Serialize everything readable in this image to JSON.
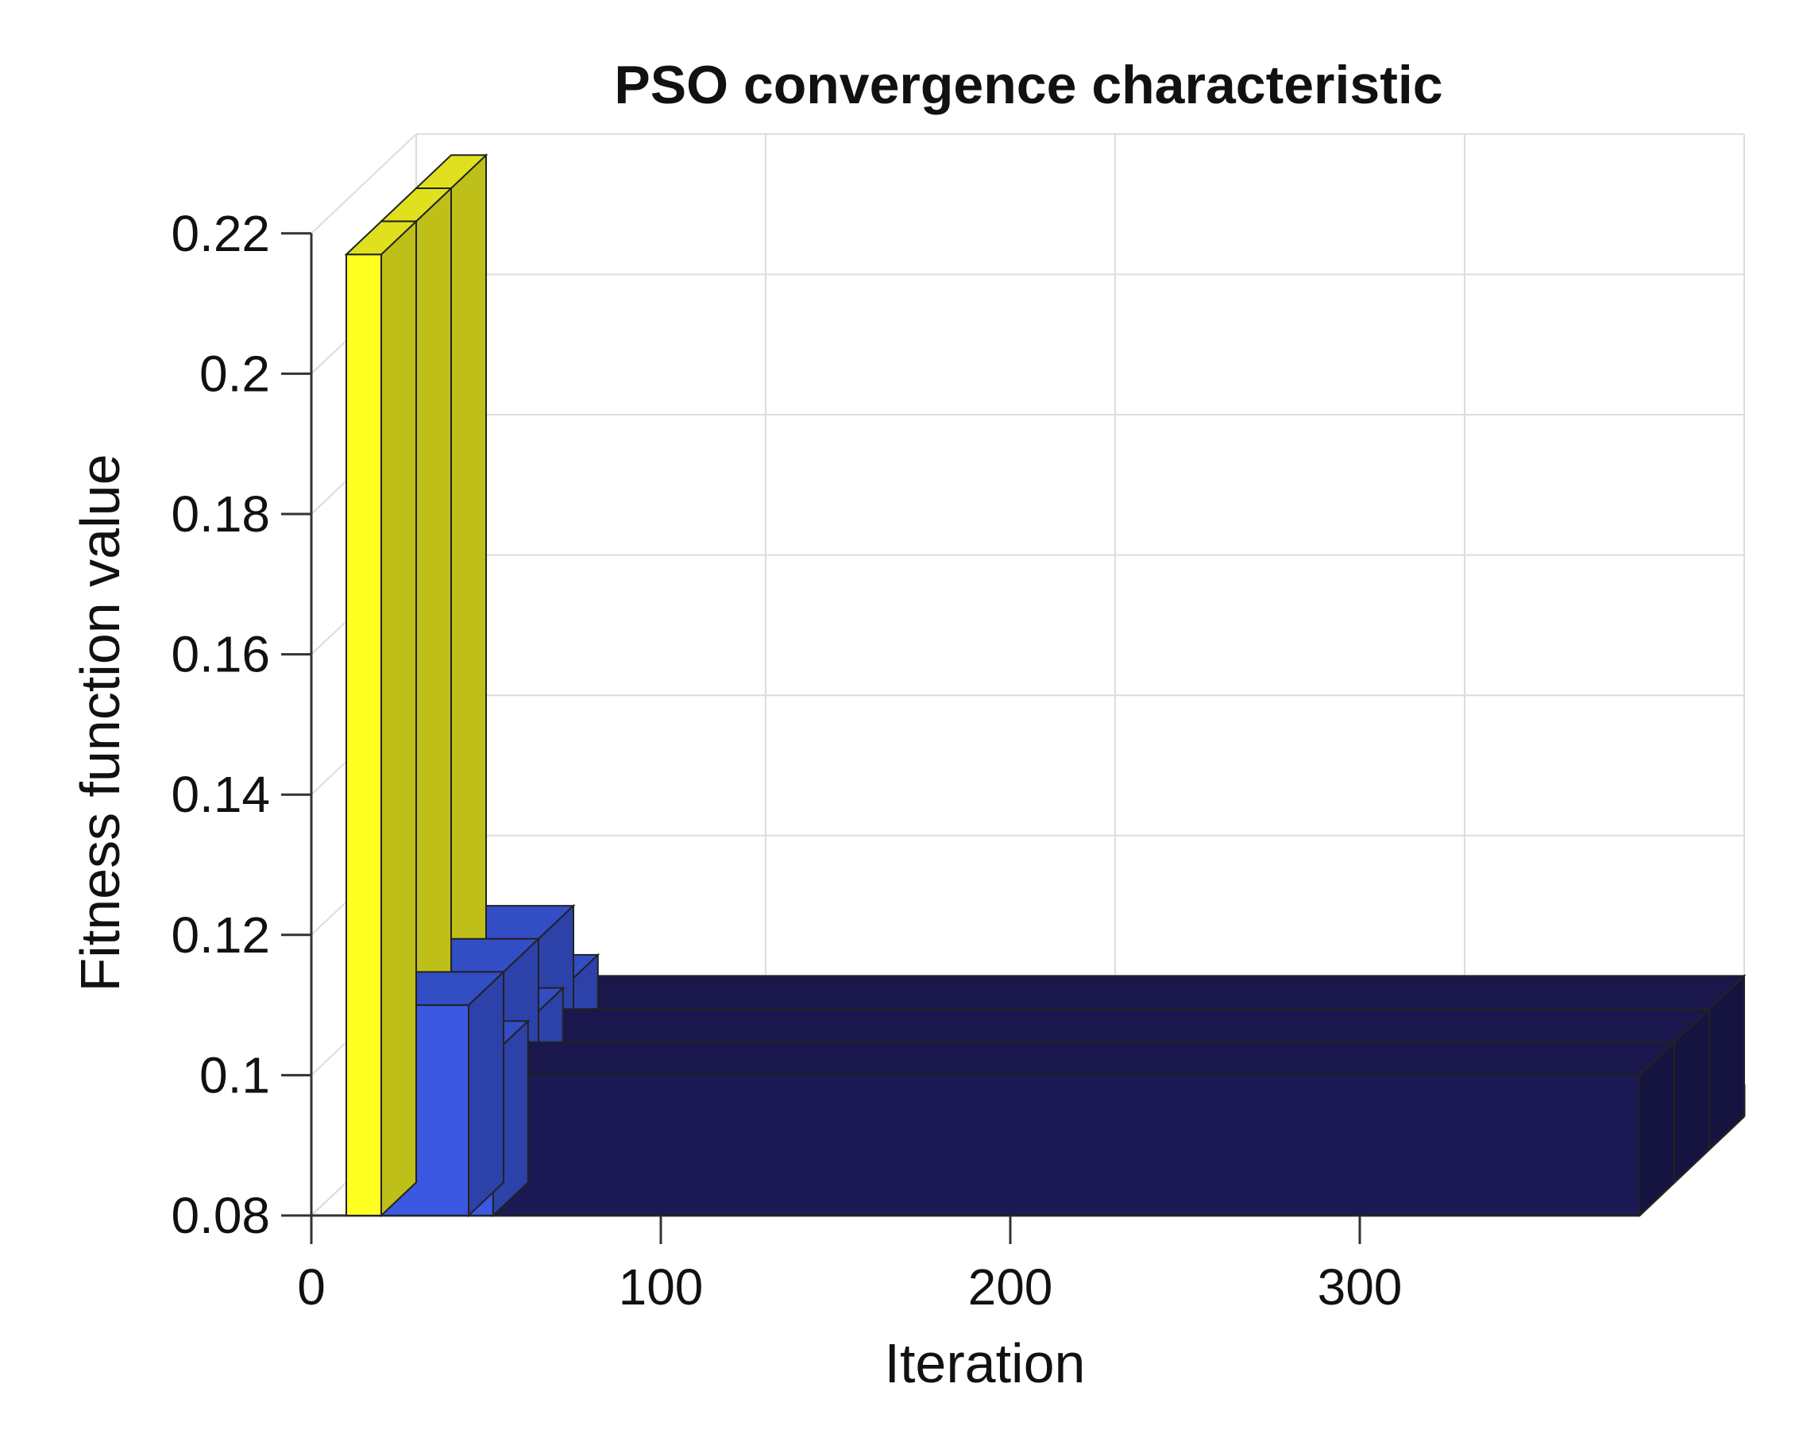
{
  "chart_data": {
    "type": "bar",
    "style": "3d-bar",
    "title": "PSO convergence characteristic",
    "xlabel": "Iteration",
    "ylabel": "Fitness function value",
    "xlim": [
      0,
      380
    ],
    "ylim": [
      0.08,
      0.22
    ],
    "xticks": [
      "0",
      "100",
      "200",
      "300"
    ],
    "yticks": [
      "0.08",
      "0.1",
      "0.12",
      "0.14",
      "0.16",
      "0.18",
      "0.2",
      "0.22"
    ],
    "grid": true,
    "depth_rows": 3,
    "colors": {
      "high": "#ffff22",
      "mid": "#3a58e0",
      "low": "#1c1a55",
      "edge": "#222222"
    },
    "series": [
      {
        "segments": [
          {
            "x_start": 10,
            "x_end": 20,
            "value": 0.217
          },
          {
            "x_start": 20,
            "x_end": 45,
            "value": 0.11
          },
          {
            "x_start": 45,
            "x_end": 52,
            "value": 0.103
          },
          {
            "x_start": 52,
            "x_end": 380,
            "value": 0.1
          }
        ]
      }
    ]
  }
}
